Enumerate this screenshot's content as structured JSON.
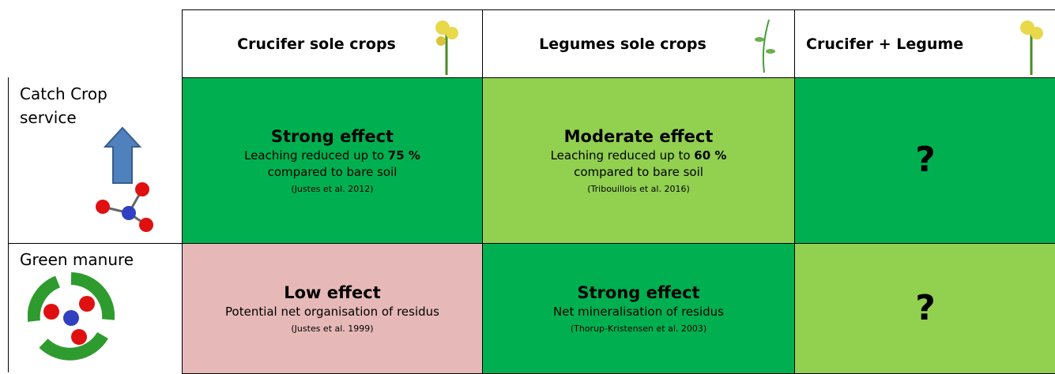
{
  "table": {
    "columns": [
      "Crucifer sole crops",
      "Legumes sole crops",
      "Crucifer +  Legume"
    ],
    "rows": [
      {
        "label": [
          "Catch Crop",
          "service"
        ],
        "cells": [
          {
            "title": "Strong effect",
            "line": "Leaching reduced up to",
            "bold": "75 %",
            "line2": "compared to bare soil",
            "citation": "(Justes et al. 2012)"
          },
          {
            "title": "Moderate effect",
            "line": "Leaching reduced up to",
            "bold": "60 %",
            "line2": "compared to bare soil",
            "citation": "(Tribouillois et al. 2016)"
          },
          {
            "title": "?"
          }
        ]
      },
      {
        "label": [
          "Green manure"
        ],
        "cells": [
          {
            "title": "Low effect",
            "line": "Potential net organisation of residus",
            "citation": "(Justes et al. 1999)"
          },
          {
            "title": "Strong effect",
            "line": "Net mineralisation of residus",
            "citation": "(Thorup-Kristensen et al. 2003)"
          },
          {
            "title": "?"
          }
        ]
      }
    ]
  }
}
